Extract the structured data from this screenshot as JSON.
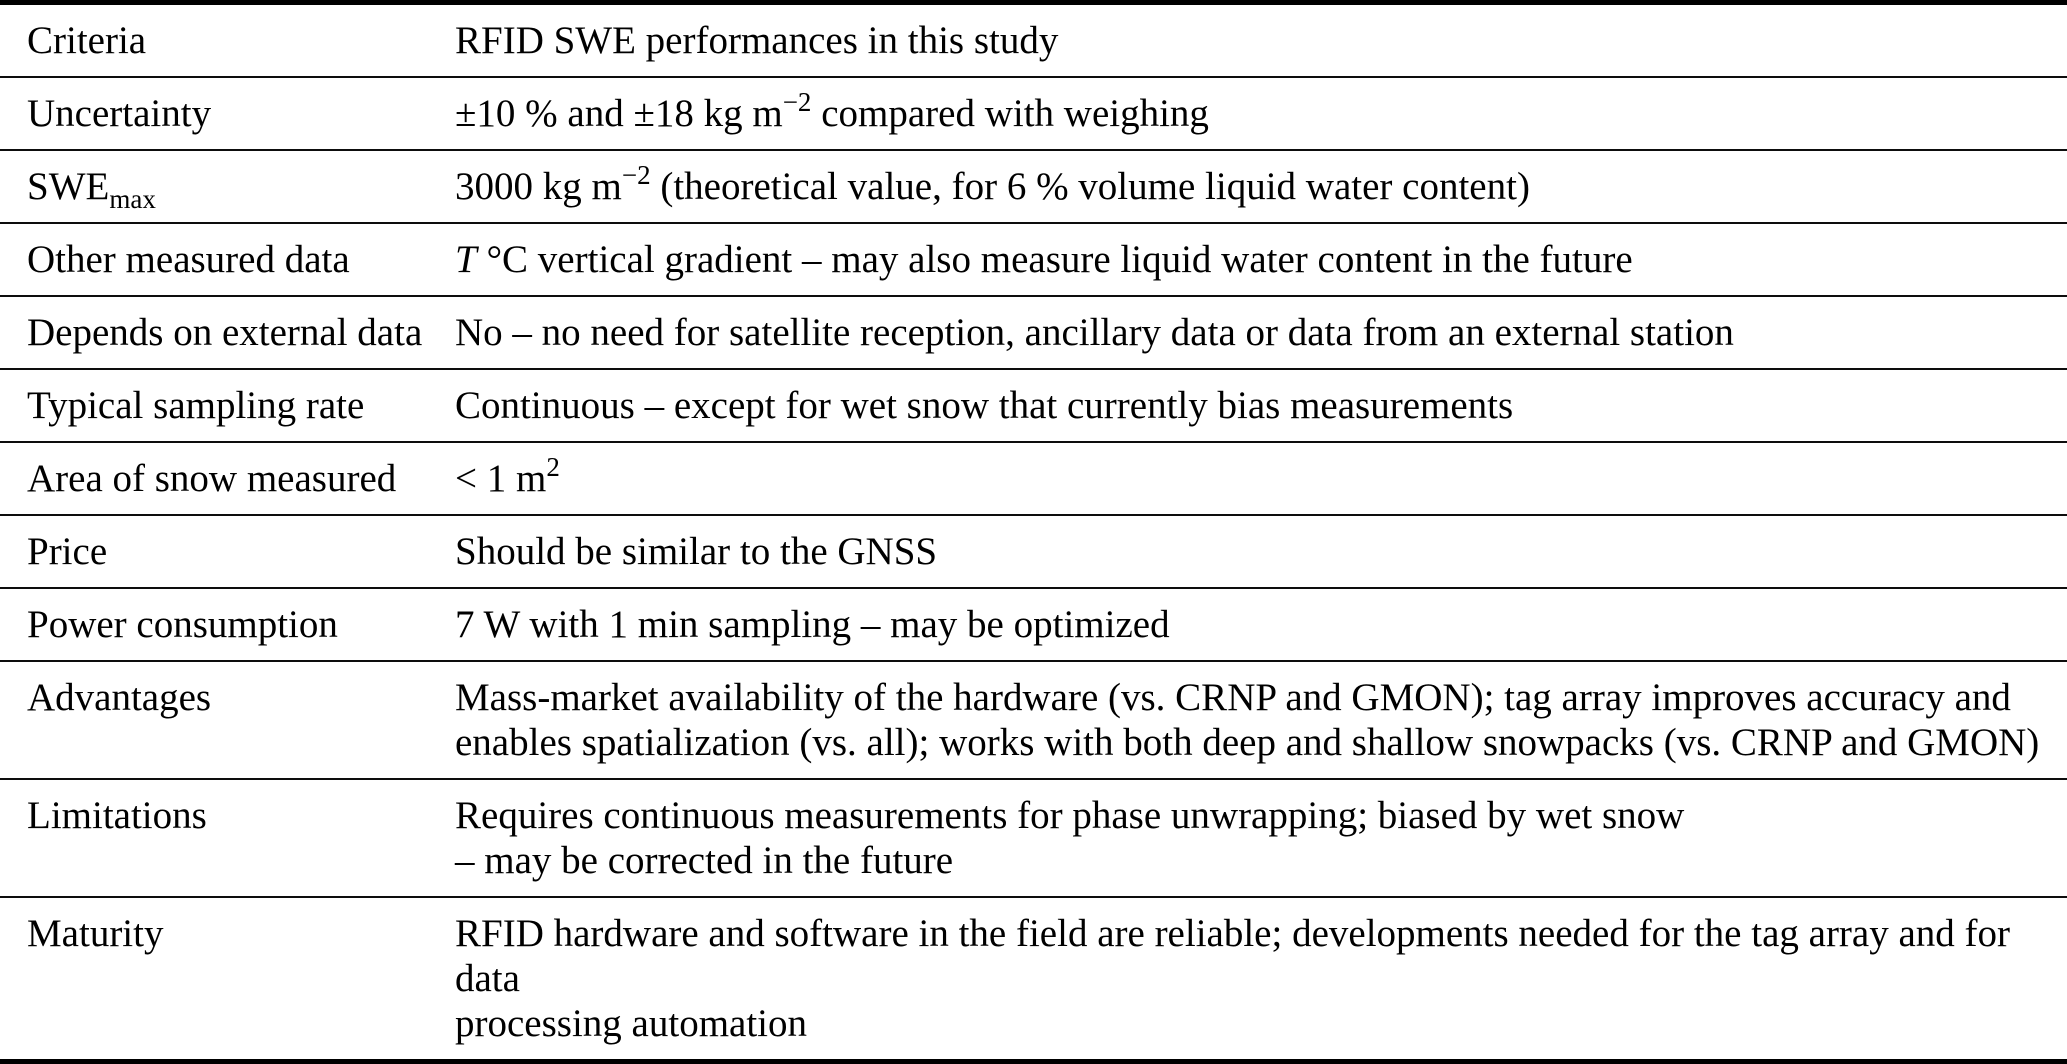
{
  "colors": {
    "text": "#000000",
    "background": "#ffffff",
    "rule": "#000000"
  },
  "table": {
    "name": "rfid-swe-performance-table",
    "columns": [
      "Criteria",
      "RFID SWE performances in this study"
    ],
    "rows": [
      {
        "label": [
          {
            "t": "Criteria"
          }
        ],
        "value": [
          {
            "t": "RFID SWE performances in this study"
          }
        ]
      },
      {
        "label": [
          {
            "t": "Uncertainty"
          }
        ],
        "value": [
          {
            "t": "±10 % and ±18 kg m"
          },
          {
            "t": "−2",
            "s": "sup"
          },
          {
            "t": " compared with weighing"
          }
        ]
      },
      {
        "label": [
          {
            "t": "SWE"
          },
          {
            "t": "max",
            "s": "sub"
          }
        ],
        "value": [
          {
            "t": "3000 kg m"
          },
          {
            "t": "−2",
            "s": "sup"
          },
          {
            "t": " (theoretical value, for 6 % volume liquid water content)"
          }
        ]
      },
      {
        "label": [
          {
            "t": "Other measured data"
          }
        ],
        "value": [
          {
            "t": "T",
            "s": "i"
          },
          {
            "t": " °C vertical gradient – may also measure liquid water content in the future"
          }
        ]
      },
      {
        "label": [
          {
            "t": "Depends on external data"
          }
        ],
        "value": [
          {
            "t": "No – no need for satellite reception, ancillary data or data from an external station"
          }
        ]
      },
      {
        "label": [
          {
            "t": "Typical sampling rate"
          }
        ],
        "value": [
          {
            "t": "Continuous – except for wet snow that currently bias measurements"
          }
        ]
      },
      {
        "label": [
          {
            "t": "Area of snow measured"
          }
        ],
        "value": [
          {
            "t": "< 1 m"
          },
          {
            "t": "2",
            "s": "sup"
          }
        ]
      },
      {
        "label": [
          {
            "t": "Price"
          }
        ],
        "value": [
          {
            "t": "Should be similar to the GNSS"
          }
        ]
      },
      {
        "label": [
          {
            "t": "Power consumption"
          }
        ],
        "value": [
          {
            "t": "7 W with 1 min sampling – may be optimized"
          }
        ]
      },
      {
        "label": [
          {
            "t": "Advantages"
          }
        ],
        "value": [
          {
            "t": "Mass-market availability of the hardware (vs. CRNP and GMON); tag array improves accuracy and"
          },
          {
            "s": "br"
          },
          {
            "t": "enables spatialization (vs. all); works with both deep and shallow snowpacks (vs. CRNP and GMON)"
          }
        ]
      },
      {
        "label": [
          {
            "t": "Limitations"
          }
        ],
        "value": [
          {
            "t": "Requires continuous measurements for phase unwrapping; biased by wet snow"
          },
          {
            "s": "br"
          },
          {
            "t": "– may be corrected in the future"
          }
        ]
      },
      {
        "label": [
          {
            "t": "Maturity"
          }
        ],
        "value": [
          {
            "t": "RFID hardware and software in the field are reliable; developments needed for the tag array and for data"
          },
          {
            "s": "br"
          },
          {
            "t": "processing automation"
          }
        ]
      }
    ]
  }
}
